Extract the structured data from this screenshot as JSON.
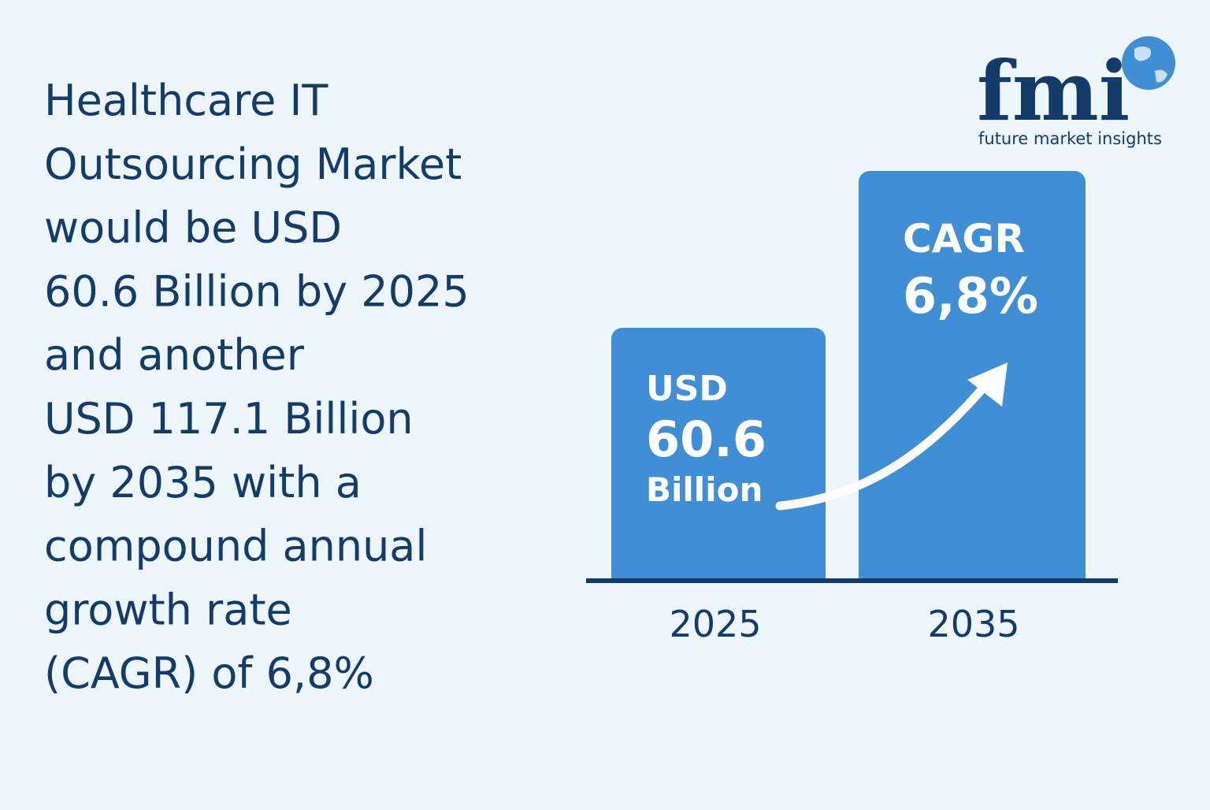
{
  "headline": {
    "lines": [
      "Healthcare IT",
      "Outsourcing Market",
      "would be USD",
      "60.6 Billion by 2025",
      "and another",
      "USD 117.1 Billion",
      "by 2035 with a",
      "compound annual",
      "growth rate",
      "(CAGR) of 6,8%"
    ]
  },
  "logo": {
    "mark": "fmi",
    "name": "future market insights"
  },
  "figure": {
    "bars": [
      {
        "year": "2025",
        "label_lines": [
          "USD",
          "60.6",
          "Billion"
        ]
      },
      {
        "year": "2035",
        "label_lines": [
          "CAGR",
          "6,8%"
        ]
      }
    ]
  }
}
